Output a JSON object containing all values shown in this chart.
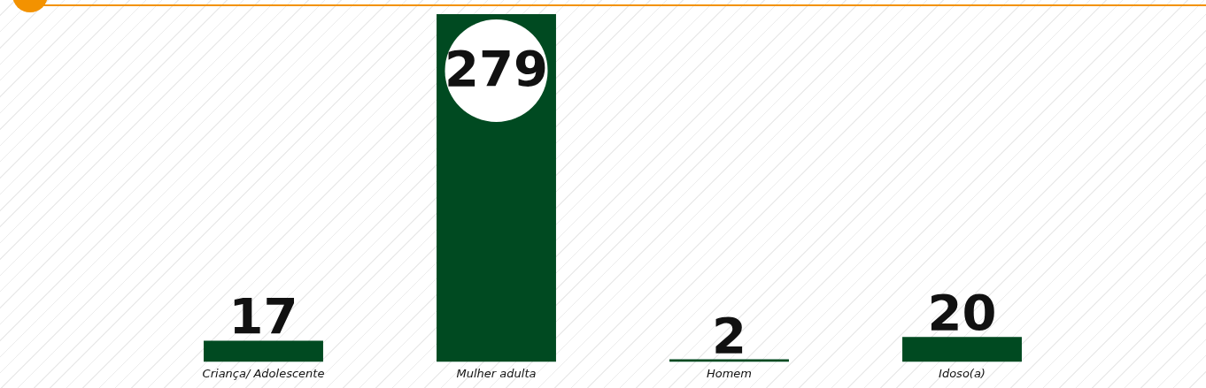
{
  "chart_data": {
    "type": "bar",
    "categories": [
      "Criança/ Adolescente",
      "Mulher adulta",
      "Homem",
      "Idoso(a)"
    ],
    "values": [
      17,
      279,
      2,
      20
    ],
    "color": "#004a21",
    "data_labels": true,
    "grid": false,
    "legend": false
  }
}
